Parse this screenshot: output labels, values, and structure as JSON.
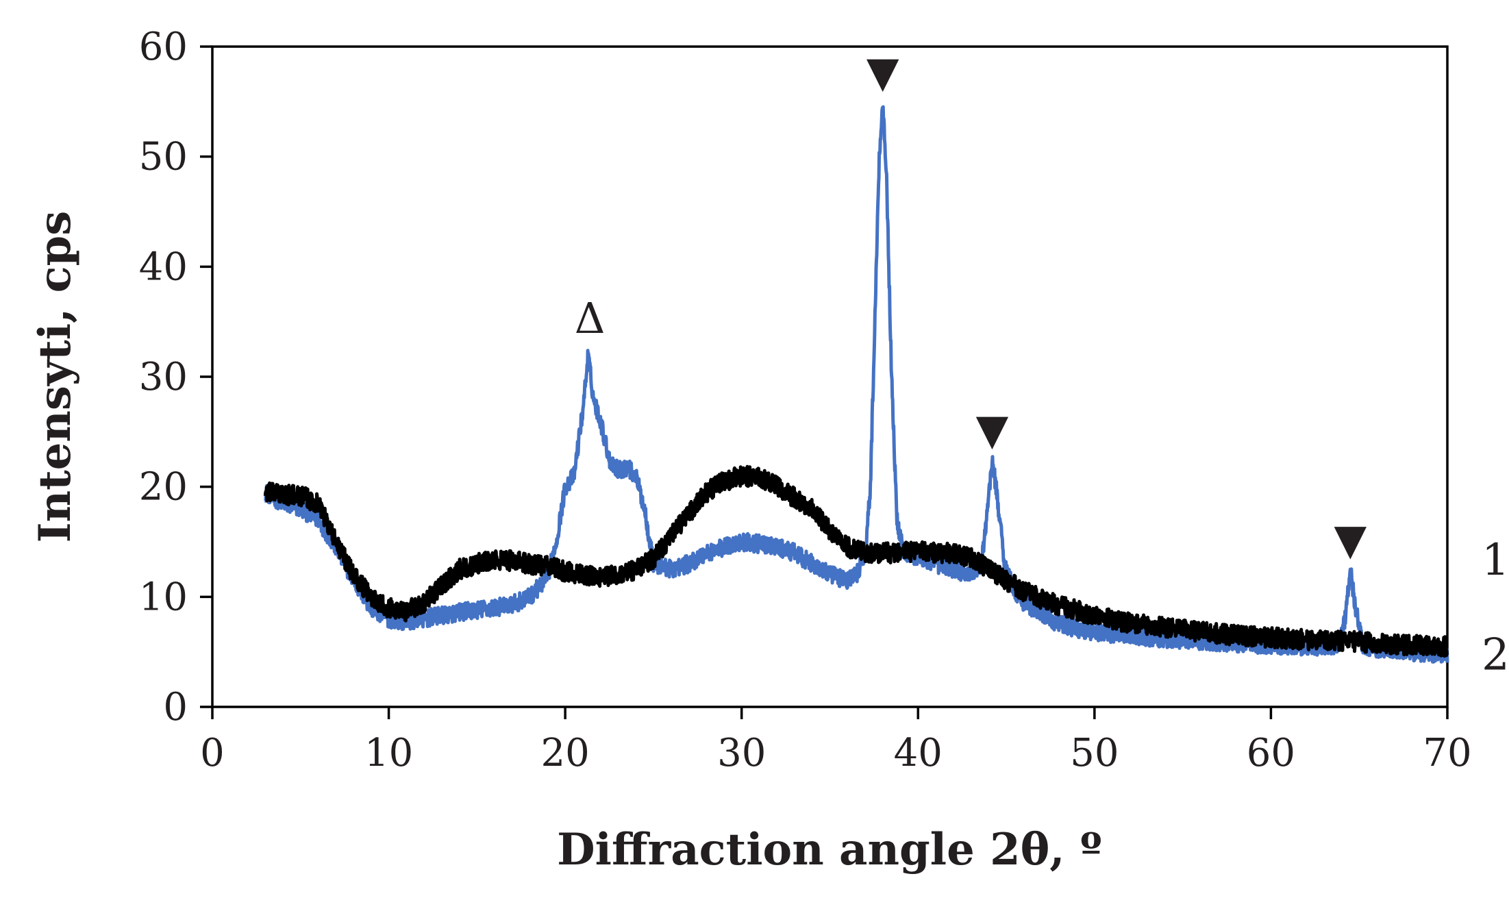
{
  "chart_data": {
    "type": "line",
    "title": "",
    "xlabel": "Diffraction angle 2θ, º",
    "ylabel": "Intensyti, cps",
    "xlim": [
      0,
      70
    ],
    "ylim": [
      0,
      60
    ],
    "x_ticks": [
      0,
      10,
      20,
      30,
      40,
      50,
      60,
      70
    ],
    "y_ticks": [
      0,
      10,
      20,
      30,
      40,
      50,
      60
    ],
    "x_tick_labels": [
      "0",
      "10",
      "20",
      "30",
      "40",
      "50",
      "60",
      "70"
    ],
    "y_tick_labels": [
      "0",
      "10",
      "20",
      "30",
      "40",
      "50",
      "60"
    ],
    "grid": false,
    "legend": "curve labels at right end",
    "series": [
      {
        "name": "1",
        "label": "1",
        "color": "#4472c4",
        "noise": 0.8,
        "x": [
          3,
          4,
          5,
          6,
          7,
          8,
          9,
          10,
          11,
          12,
          13,
          14,
          15,
          16,
          17,
          18,
          19,
          19.5,
          20,
          20.5,
          21,
          21.3,
          21.6,
          22,
          22.5,
          23,
          23.5,
          24,
          24.5,
          25,
          26,
          27,
          28,
          29,
          30,
          31,
          32,
          33,
          34,
          35,
          36,
          36.5,
          37,
          37.3,
          37.6,
          37.8,
          38.0,
          38.2,
          38.5,
          38.8,
          39.2,
          40,
          41,
          42,
          43,
          43.6,
          44.0,
          44.2,
          44.5,
          44.9,
          45.5,
          46,
          47,
          48,
          50,
          52,
          54,
          56,
          58,
          60,
          62,
          63.8,
          64.2,
          64.5,
          64.8,
          65.2,
          66,
          68,
          70
        ],
        "y": [
          19.5,
          18.5,
          18.0,
          17.0,
          14.5,
          11.5,
          9.0,
          8.0,
          7.8,
          8.0,
          8.3,
          8.6,
          8.8,
          9.0,
          9.3,
          10.0,
          11.8,
          15.0,
          20.0,
          21.0,
          27.0,
          32.0,
          28.0,
          26.0,
          22.5,
          21.5,
          21.8,
          21.0,
          18.0,
          13.0,
          12.5,
          13.0,
          14.0,
          14.5,
          15.0,
          14.8,
          14.5,
          14.0,
          13.0,
          12.0,
          11.5,
          12.0,
          14.0,
          20.0,
          38.0,
          50.0,
          55.0,
          49.0,
          30.0,
          17.0,
          14.0,
          13.5,
          13.0,
          12.5,
          12.0,
          13.0,
          19.0,
          22.5,
          19.0,
          13.0,
          10.5,
          9.5,
          8.5,
          7.5,
          6.8,
          6.5,
          6.2,
          6.0,
          5.8,
          5.6,
          5.5,
          5.5,
          8.0,
          12.5,
          9.0,
          5.5,
          5.3,
          5.0,
          4.8
        ]
      },
      {
        "name": "2",
        "label": "2",
        "color": "#000000",
        "noise": 0.9,
        "x": [
          3,
          4,
          5,
          6,
          7,
          8,
          9,
          10,
          11,
          12,
          13,
          14,
          15,
          16,
          17,
          18,
          19,
          20,
          21,
          22,
          23,
          24,
          25,
          26,
          27,
          28,
          29,
          30,
          31,
          32,
          33,
          34,
          35,
          36,
          37,
          38,
          39,
          40,
          41,
          42,
          43,
          44,
          45,
          46,
          47,
          48,
          50,
          52,
          54,
          56,
          58,
          60,
          62,
          64,
          66,
          68,
          70
        ],
        "y": [
          19.5,
          19.3,
          19.2,
          18.5,
          15.0,
          12.0,
          10.0,
          9.0,
          8.7,
          9.5,
          11.0,
          12.5,
          13.0,
          13.3,
          13.3,
          13.0,
          12.8,
          12.3,
          12.0,
          11.8,
          12.0,
          12.5,
          13.5,
          15.5,
          17.5,
          19.5,
          20.5,
          21.0,
          20.8,
          20.0,
          19.0,
          18.0,
          16.0,
          14.5,
          14.0,
          14.0,
          14.0,
          14.2,
          14.0,
          14.0,
          13.5,
          12.5,
          11.5,
          10.5,
          9.8,
          9.2,
          8.3,
          7.6,
          7.2,
          6.8,
          6.5,
          6.3,
          6.1,
          6.0,
          5.8,
          5.6,
          5.5
        ]
      }
    ],
    "annotations": [
      {
        "text": "Δ",
        "x": 21.4,
        "y": 32.6
      },
      {
        "text": "▼",
        "x": 38.0,
        "y": 55.0
      },
      {
        "text": "▼",
        "x": 44.2,
        "y": 22.5
      },
      {
        "text": "▼",
        "x": 64.5,
        "y": 12.5
      }
    ]
  }
}
